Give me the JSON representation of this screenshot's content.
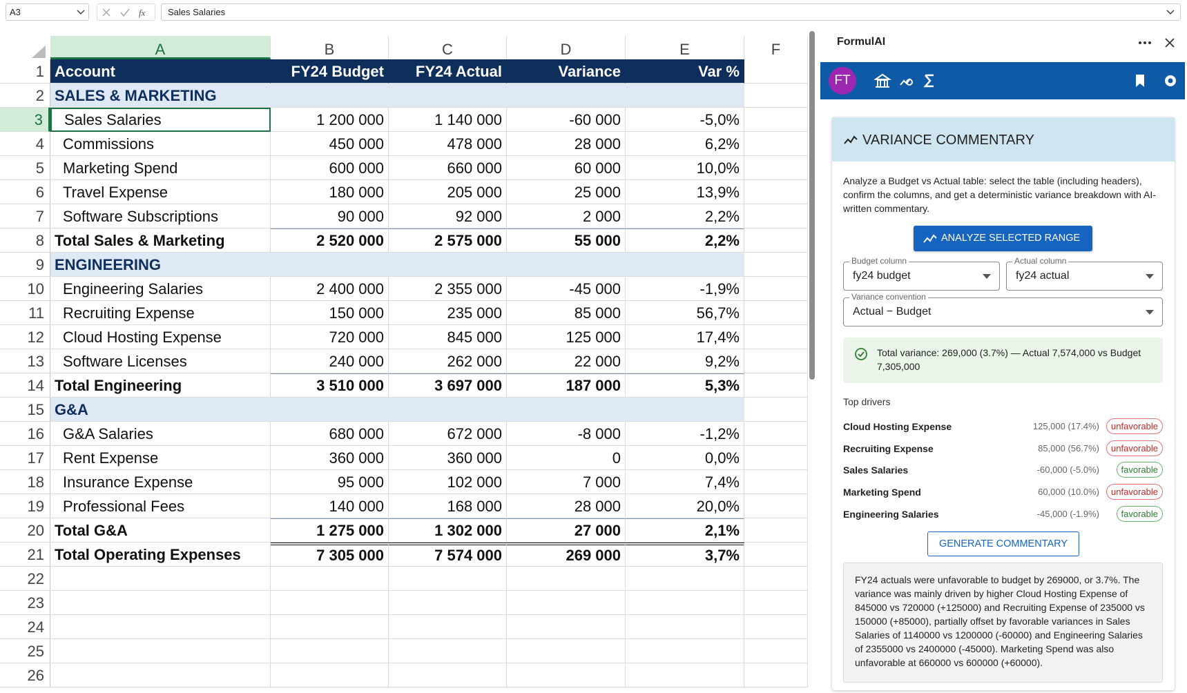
{
  "formula_bar": {
    "cell_ref": "A3",
    "content": "Sales Salaries"
  },
  "sheet": {
    "columns": [
      "A",
      "B",
      "C",
      "D",
      "E",
      "F"
    ],
    "row_numbers": [
      1,
      2,
      3,
      4,
      5,
      6,
      7,
      8,
      9,
      10,
      11,
      12,
      13,
      14,
      15,
      16,
      17,
      18,
      19,
      20,
      21,
      22,
      23,
      24,
      25,
      26
    ],
    "header": [
      "Account",
      "FY24 Budget",
      "FY24 Actual",
      "Variance",
      "Var %"
    ],
    "sections": [
      {
        "title": "SALES & MARKETING",
        "items": [
          [
            "Sales Salaries",
            "1 200 000",
            "1 140 000",
            "-60 000",
            "-5,0%"
          ],
          [
            "Commissions",
            "450 000",
            "478 000",
            "28 000",
            "6,2%"
          ],
          [
            "Marketing Spend",
            "600 000",
            "660 000",
            "60 000",
            "10,0%"
          ],
          [
            "Travel Expense",
            "180 000",
            "205 000",
            "25 000",
            "13,9%"
          ],
          [
            "Software Subscriptions",
            "90 000",
            "92 000",
            "2 000",
            "2,2%"
          ]
        ],
        "total": [
          "Total Sales & Marketing",
          "2 520 000",
          "2 575 000",
          "55 000",
          "2,2%"
        ]
      },
      {
        "title": "ENGINEERING",
        "items": [
          [
            "Engineering Salaries",
            "2 400 000",
            "2 355 000",
            "-45 000",
            "-1,9%"
          ],
          [
            "Recruiting Expense",
            "150 000",
            "235 000",
            "85 000",
            "56,7%"
          ],
          [
            "Cloud Hosting Expense",
            "720 000",
            "845 000",
            "125 000",
            "17,4%"
          ],
          [
            "Software Licenses",
            "240 000",
            "262 000",
            "22 000",
            "9,2%"
          ]
        ],
        "total": [
          "Total Engineering",
          "3 510 000",
          "3 697 000",
          "187 000",
          "5,3%"
        ]
      },
      {
        "title": "G&A",
        "items": [
          [
            "G&A Salaries",
            "680 000",
            "672 000",
            "-8 000",
            "-1,2%"
          ],
          [
            "Rent Expense",
            "360 000",
            "360 000",
            "0",
            "0,0%"
          ],
          [
            "Insurance Expense",
            "95 000",
            "102 000",
            "7 000",
            "7,4%"
          ],
          [
            "Professional Fees",
            "140 000",
            "168 000",
            "28 000",
            "20,0%"
          ]
        ],
        "total": [
          "Total G&A",
          "1 275 000",
          "1 302 000",
          "27 000",
          "2,1%"
        ]
      }
    ],
    "grand_total": [
      "Total Operating Expenses",
      "7 305 000",
      "7 574 000",
      "269 000",
      "3,7%"
    ]
  },
  "panel": {
    "title": "FormulAI",
    "avatar": "FT",
    "section_title": "VARIANCE COMMENTARY",
    "description": "Analyze a Budget vs Actual table: select the table (including headers), confirm the columns, and get a deterministic variance breakdown with AI-written commentary.",
    "analyze_button": "ANALYZE SELECTED RANGE",
    "budget_label": "Budget column",
    "budget_value": "fy24 budget",
    "actual_label": "Actual column",
    "actual_value": "fy24 actual",
    "convention_label": "Variance convention",
    "convention_value": "Actual − Budget",
    "summary": "Total variance: 269,000 (3.7%) — Actual 7,574,000 vs Budget 7,305,000",
    "drivers_title": "Top drivers",
    "drivers": [
      {
        "name": "Cloud Hosting Expense",
        "value": "125,000 (17.4%)",
        "status": "unfavorable"
      },
      {
        "name": "Recruiting Expense",
        "value": "85,000 (56.7%)",
        "status": "unfavorable"
      },
      {
        "name": "Sales Salaries",
        "value": "-60,000 (-5.0%)",
        "status": "favorable"
      },
      {
        "name": "Marketing Spend",
        "value": "60,000 (10.0%)",
        "status": "unfavorable"
      },
      {
        "name": "Engineering Salaries",
        "value": "-45,000 (-1.9%)",
        "status": "favorable"
      }
    ],
    "generate_button": "GENERATE COMMENTARY",
    "commentary": "FY24 actuals were unfavorable to budget by 269000, or 3.7%. The variance was mainly driven by higher Cloud Hosting Expense of 845000 vs 720000 (+125000) and Recruiting Expense of 235000 vs 150000 (+85000), partially offset by favorable variances in Sales Salaries of 1140000 vs 1200000 (-60000) and Engineering Salaries of 2355000 vs 2400000 (-45000). Marketing Spend was also unfavorable at 660000 vs 600000 (+60000)."
  }
}
